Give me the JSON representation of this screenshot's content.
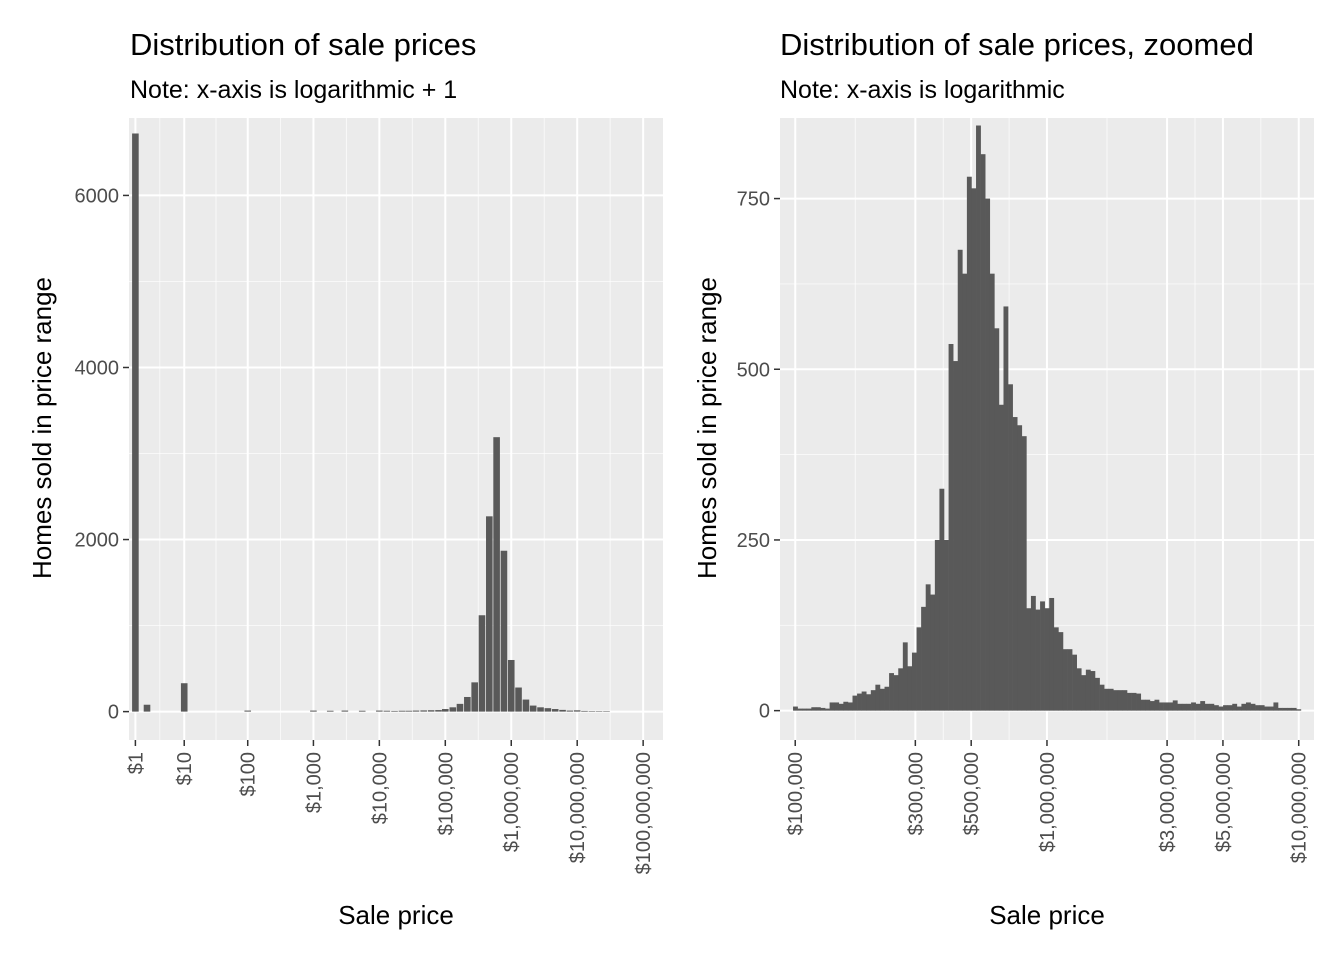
{
  "colors": {
    "panel": "#ebebeb",
    "grid_major": "#ffffff",
    "bar": "#595959",
    "tick": "#333333",
    "tick_text": "#4d4d4d"
  },
  "chart_data": [
    {
      "type": "bar",
      "title": "Distribution of sale prices",
      "subtitle": "Note: x-axis is logarithmic + 1",
      "xlabel": "Sale price",
      "ylabel": "Homes sold in price range",
      "x_scale": "log10(x + 1)",
      "xlim": [
        0.6,
        200000000
      ],
      "ylim": [
        -330,
        6900
      ],
      "grid": true,
      "legend": "none",
      "x_ticks": [
        {
          "value": 1,
          "label": "$1"
        },
        {
          "value": 10,
          "label": "$10"
        },
        {
          "value": 100,
          "label": "$100"
        },
        {
          "value": 1000,
          "label": "$1,000"
        },
        {
          "value": 10000,
          "label": "$10,000"
        },
        {
          "value": 100000,
          "label": "$100,000"
        },
        {
          "value": 1000000,
          "label": "$1,000,000"
        },
        {
          "value": 10000000,
          "label": "$10,000,000"
        },
        {
          "value": 100000000,
          "label": "$100,000,000"
        }
      ],
      "y_ticks": [
        {
          "value": 0,
          "label": "0"
        },
        {
          "value": 2000,
          "label": "2000"
        },
        {
          "value": 4000,
          "label": "4000"
        },
        {
          "value": 6000,
          "label": "6000"
        }
      ],
      "bars": [
        {
          "x": 1,
          "count": 6720
        },
        {
          "x": 2,
          "count": 80
        },
        {
          "x": 10,
          "count": 330
        },
        {
          "x": 100,
          "count": 12
        },
        {
          "x": 1000,
          "count": 12
        },
        {
          "x": 1800,
          "count": 10
        },
        {
          "x": 3000,
          "count": 12
        },
        {
          "x": 5500,
          "count": 10
        },
        {
          "x": 10000,
          "count": 12
        },
        {
          "x": 13000,
          "count": 10
        },
        {
          "x": 17000,
          "count": 8
        },
        {
          "x": 22000,
          "count": 10
        },
        {
          "x": 28000,
          "count": 10
        },
        {
          "x": 36000,
          "count": 12
        },
        {
          "x": 47000,
          "count": 14
        },
        {
          "x": 61000,
          "count": 16
        },
        {
          "x": 79000,
          "count": 18
        },
        {
          "x": 100000,
          "count": 30
        },
        {
          "x": 130000,
          "count": 50
        },
        {
          "x": 167000,
          "count": 90
        },
        {
          "x": 216000,
          "count": 170
        },
        {
          "x": 279000,
          "count": 340
        },
        {
          "x": 360000,
          "count": 1120
        },
        {
          "x": 465000,
          "count": 2270
        },
        {
          "x": 600000,
          "count": 3190
        },
        {
          "x": 775000,
          "count": 1870
        },
        {
          "x": 1000000,
          "count": 600
        },
        {
          "x": 1290000,
          "count": 280
        },
        {
          "x": 1670000,
          "count": 140
        },
        {
          "x": 2150000,
          "count": 70
        },
        {
          "x": 2780000,
          "count": 50
        },
        {
          "x": 3590000,
          "count": 40
        },
        {
          "x": 4640000,
          "count": 30
        },
        {
          "x": 6000000,
          "count": 20
        },
        {
          "x": 7740000,
          "count": 12
        },
        {
          "x": 10000000,
          "count": 15
        },
        {
          "x": 12900000,
          "count": 8
        },
        {
          "x": 16700000,
          "count": 6
        },
        {
          "x": 21500000,
          "count": 5
        },
        {
          "x": 27800000,
          "count": 4
        }
      ]
    },
    {
      "type": "bar",
      "title": "Distribution of sale prices, zoomed",
      "subtitle": "Note: x-axis is logarithmic",
      "xlabel": "Sale price",
      "ylabel": "Homes sold in price range",
      "x_scale": "log10",
      "xlim": [
        87000,
        11500000
      ],
      "ylim": [
        -43,
        868
      ],
      "grid": true,
      "legend": "none",
      "x_ticks": [
        {
          "value": 100000,
          "label": "$100,000"
        },
        {
          "value": 300000,
          "label": "$300,000"
        },
        {
          "value": 500000,
          "label": "$500,000"
        },
        {
          "value": 1000000,
          "label": "$1,000,000"
        },
        {
          "value": 3000000,
          "label": "$3,000,000"
        },
        {
          "value": 5000000,
          "label": "$5,000,000"
        },
        {
          "value": 10000000,
          "label": "$10,000,000"
        }
      ],
      "y_ticks": [
        {
          "value": 0,
          "label": "0"
        },
        {
          "value": 250,
          "label": "250"
        },
        {
          "value": 500,
          "label": "500"
        },
        {
          "value": 750,
          "label": "750"
        }
      ],
      "bin_start": 98000,
      "bin_end": 10200000,
      "counts": [
        6,
        3,
        3,
        3,
        5,
        5,
        4,
        3,
        12,
        12,
        10,
        13,
        12,
        22,
        25,
        28,
        24,
        30,
        38,
        32,
        35,
        55,
        52,
        62,
        100,
        65,
        85,
        122,
        152,
        185,
        170,
        250,
        325,
        250,
        537,
        512,
        675,
        640,
        782,
        765,
        857,
        815,
        750,
        640,
        560,
        448,
        592,
        478,
        430,
        418,
        402,
        150,
        168,
        148,
        160,
        150,
        165,
        122,
        115,
        90,
        90,
        82,
        62,
        52,
        60,
        58,
        48,
        38,
        32,
        32,
        30,
        30,
        30,
        26,
        26,
        25,
        16,
        16,
        14,
        16,
        12,
        12,
        12,
        15,
        10,
        10,
        10,
        12,
        10,
        14,
        10,
        10,
        8,
        6,
        8,
        8,
        10,
        6,
        10,
        12,
        10,
        8,
        8,
        6,
        6,
        12,
        4,
        4,
        4,
        4,
        2
      ],
      "first_panel_leftover": null
    }
  ]
}
